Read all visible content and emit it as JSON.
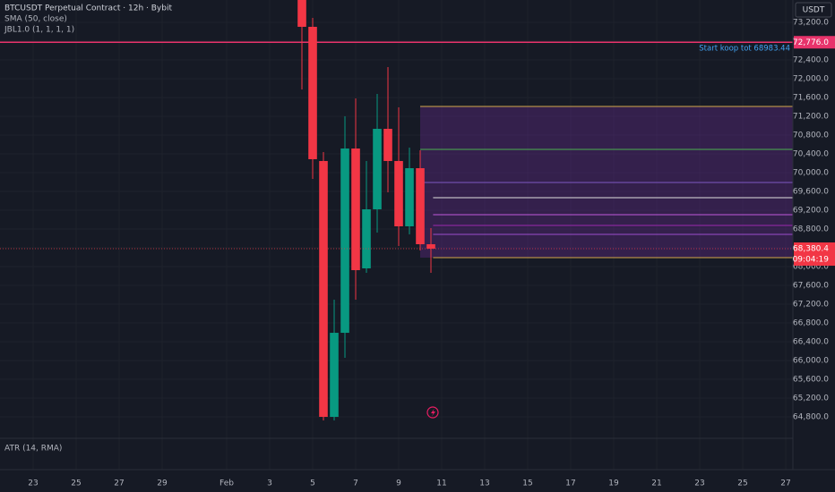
{
  "chart_data": {
    "type": "candlestick",
    "title": "BTCUSDT Perpetual Contract · 12h · Bybit",
    "indicators": [
      "SMA (50, close)",
      "JBL1.0 (1, 1, 1, 1)"
    ],
    "currency": "USDT",
    "lower_pane": "ATR (14, RMA)",
    "up_color": "#089981",
    "down_color": "#f23645",
    "x": [
      35.5,
      36,
      36.5,
      37,
      37.5,
      38,
      38.5,
      39,
      39.5,
      40,
      40.5,
      41,
      41.5
    ],
    "open": [
      73800,
      73105,
      70248,
      64800,
      66590,
      70514,
      67962,
      69219,
      70933,
      70248,
      68857,
      70095,
      68476
    ],
    "high": [
      73800,
      73295,
      70438,
      67295,
      71200,
      71581,
      70248,
      71676,
      72248,
      71390,
      70533,
      70476,
      68819
    ],
    "low": [
      71771,
      69867,
      64724,
      64724,
      66057,
      67295,
      67867,
      68724,
      69581,
      68438,
      68686,
      68343,
      67867
    ],
    "close": [
      73105,
      70286,
      64800,
      66590,
      70514,
      67924,
      69219,
      70933,
      70248,
      68857,
      70095,
      68476,
      68380.4
    ],
    "xlim": [
      21.458,
      58.333
    ],
    "xticks": [
      23,
      25,
      27,
      29,
      {
        "value": 32,
        "label": "Feb"
      },
      {
        "value": 34,
        "label": "3"
      },
      {
        "value": 36,
        "label": "5"
      },
      {
        "value": 38,
        "label": "7"
      },
      {
        "value": 40,
        "label": "9"
      },
      {
        "value": 42,
        "label": "11"
      },
      {
        "value": 44,
        "label": "13"
      },
      {
        "value": 46,
        "label": "15"
      },
      {
        "value": 48,
        "label": "17"
      },
      {
        "value": 50,
        "label": "19"
      },
      {
        "value": 52,
        "label": "21"
      },
      {
        "value": 54,
        "label": "23"
      },
      {
        "value": 56,
        "label": "25"
      },
      {
        "value": 58,
        "label": "27"
      }
    ],
    "ylim": [
      64724,
      73676
    ],
    "yticks": [
      {
        "value": 64800,
        "label": "64,800.0"
      },
      {
        "value": 65200,
        "label": "65,200.0"
      },
      {
        "value": 65600,
        "label": "65,600.0"
      },
      {
        "value": 66000,
        "label": "66,000.0"
      },
      {
        "value": 66400,
        "label": "66,400.0"
      },
      {
        "value": 66800,
        "label": "66,800.0"
      },
      {
        "value": 67200,
        "label": "67,200.0"
      },
      {
        "value": 67600,
        "label": "67,600.0"
      },
      {
        "value": 68000,
        "label": "68,000.0"
      },
      {
        "value": 68400,
        "label": "68,400.0"
      },
      {
        "value": 68800,
        "label": "68,800.0"
      },
      {
        "value": 69200,
        "label": "69,200.0"
      },
      {
        "value": 69600,
        "label": "69,600.0"
      },
      {
        "value": 70000,
        "label": "70,000.0"
      },
      {
        "value": 70400,
        "label": "70,400.0"
      },
      {
        "value": 70800,
        "label": "70,800.0"
      },
      {
        "value": 71200,
        "label": "71,200.0"
      },
      {
        "value": 71600,
        "label": "71,600.0"
      },
      {
        "value": 72000,
        "label": "72,000.0"
      },
      {
        "value": 72400,
        "label": "72,400.0"
      },
      {
        "value": 72800,
        "label": "72,800.0"
      },
      {
        "value": 73200,
        "label": "73,200.0"
      }
    ],
    "price_lines": [
      {
        "value": 72776,
        "label": "72,776.0",
        "color": "#e8336b"
      }
    ],
    "annotation": "Start koop tot 68983.44",
    "last_price": {
      "value": 68380.4,
      "label": "68,380.4",
      "countdown": "09:04:19",
      "color": "#f23645"
    },
    "zone": {
      "x": 41,
      "top": 71410,
      "bottom": 68190,
      "color": "#7b2fa8"
    },
    "levels": [
      {
        "value": 71410,
        "color": "#d4a84a",
        "x": 41
      },
      {
        "value": 70495,
        "color": "#4caf50",
        "x": 41
      },
      {
        "value": 69790,
        "color": "#7e57c2",
        "x": 41
      },
      {
        "value": 69467,
        "color": "#e0e0e0",
        "x": 41.6
      },
      {
        "value": 69105,
        "color": "#c158dc",
        "x": 41.6
      },
      {
        "value": 68876,
        "color": "#9c27b0",
        "x": 41.6
      },
      {
        "value": 68686,
        "color": "#9c4dcc",
        "x": 41.6
      },
      {
        "value": 68190,
        "color": "#d4a84a",
        "x": 41.6
      }
    ]
  }
}
